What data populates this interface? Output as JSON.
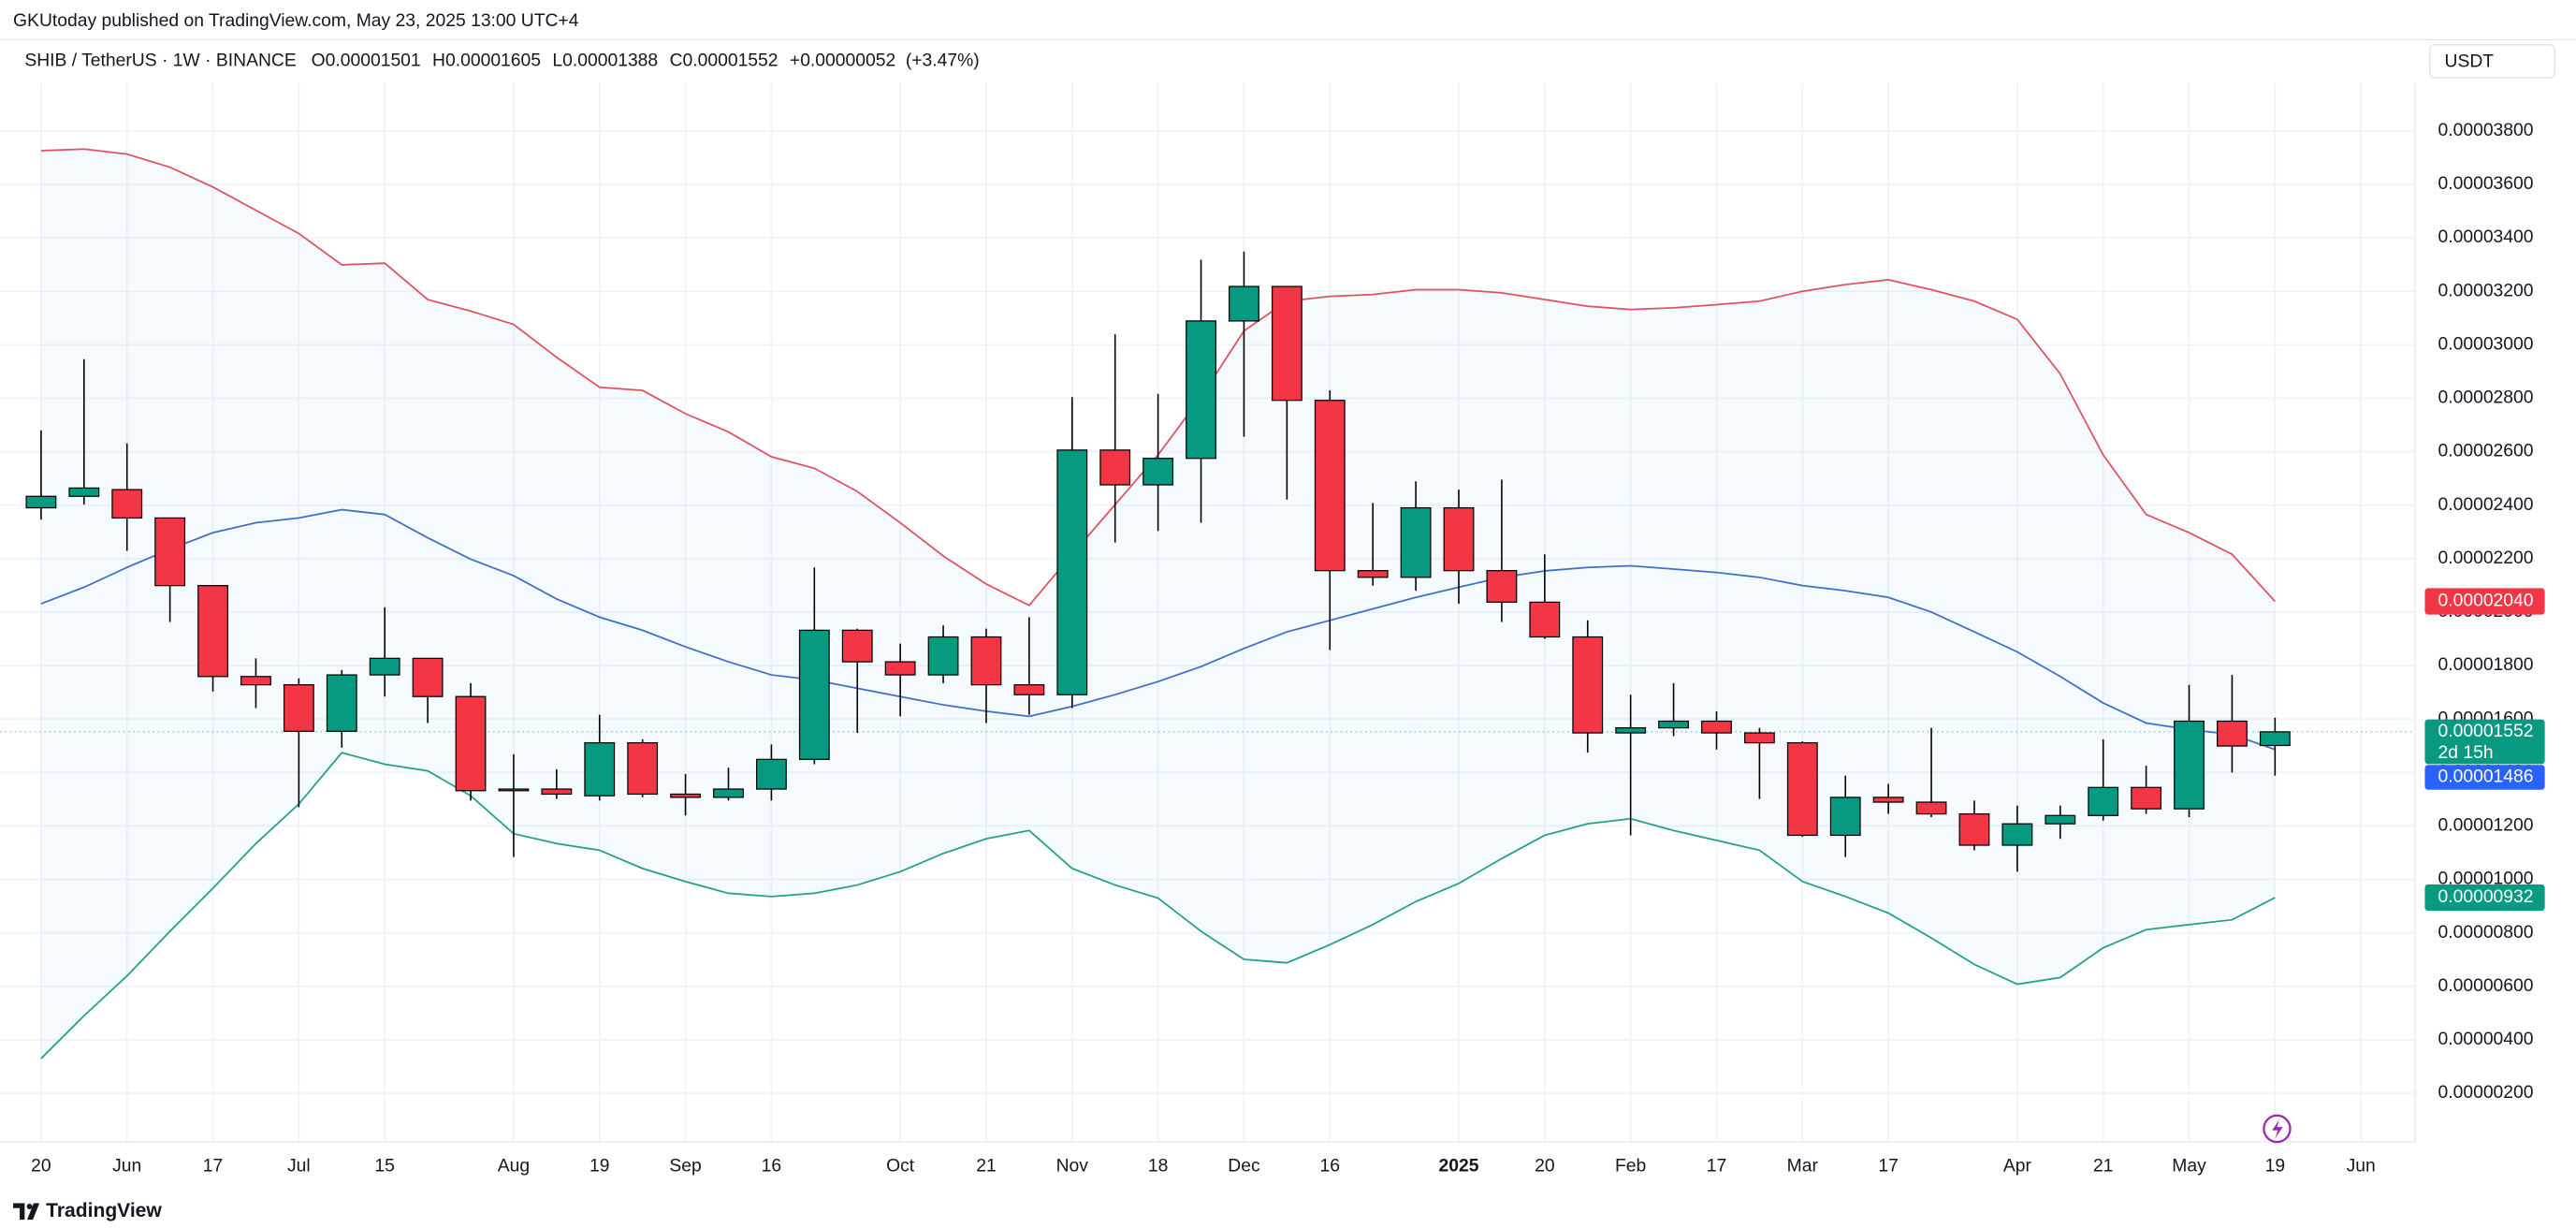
{
  "chart_data": {
    "type": "candlestick",
    "subtitle": "GKUtoday published on TradingView.com, May 23, 2025 13:00 UTC+4",
    "title": "SHIB / TetherUS · 1W · BINANCE",
    "ohlc_keys": [
      "O",
      "H",
      "L",
      "C"
    ],
    "change": "+0.00000052",
    "change_pct": "(+3.47%)",
    "currency": "USDT",
    "countdown": "2d 15h",
    "footer": "TradingView",
    "up_color": "#089981",
    "down_color": "#f23645",
    "grid": true,
    "categories": [
      "20",
      null,
      "Jun",
      null,
      "17",
      null,
      "Jul",
      null,
      "15",
      null,
      null,
      "Aug",
      null,
      "19",
      null,
      "Sep",
      null,
      "16",
      null,
      null,
      "Oct",
      null,
      "21",
      null,
      "Nov",
      null,
      "18",
      null,
      "Dec",
      null,
      "16",
      null,
      null,
      "2025",
      null,
      "20",
      null,
      "Feb",
      null,
      "17",
      null,
      "Mar",
      null,
      "17",
      null,
      null,
      "Apr",
      null,
      "21",
      null,
      "May",
      null,
      "19",
      null,
      "Jun"
    ],
    "open": [
      2.39e-05,
      2.433e-05,
      2.458e-05,
      2.352e-05,
      2.099e-05,
      1.759e-05,
      1.728e-05,
      1.554e-05,
      1.765e-05,
      1.827e-05,
      1.684e-05,
      1.338e-05,
      1.338e-05,
      1.313e-05,
      1.511e-05,
      1.319e-05,
      1.307e-05,
      1.338e-05,
      1.449e-05,
      1.932e-05,
      1.814e-05,
      1.765e-05,
      1.907e-05,
      1.728e-05,
      1.691e-05,
      2.606e-05,
      2.476e-05,
      2.575e-05,
      3.089e-05,
      3.218e-05,
      2.792e-05,
      2.155e-05,
      2.13e-05,
      2.39e-05,
      2.155e-05,
      2.037e-05,
      1.907e-05,
      1.548e-05,
      1.567e-05,
      1.592e-05,
      1.548e-05,
      1.511e-05,
      1.165e-05,
      1.307e-05,
      1.289e-05,
      1.245e-05,
      1.128e-05,
      1.208e-05,
      1.239e-05,
      1.344e-05,
      1.264e-05,
      1.592e-05,
      1.501e-05,
      null,
      null
    ],
    "high": [
      2.68e-05,
      2.946e-05,
      2.631e-05,
      2.352e-05,
      2.099e-05,
      1.827e-05,
      1.752e-05,
      1.783e-05,
      2.018e-05,
      1.827e-05,
      1.734e-05,
      1.468e-05,
      1.412e-05,
      1.616e-05,
      1.524e-05,
      1.394e-05,
      1.418e-05,
      1.505e-05,
      2.167e-05,
      1.938e-05,
      1.882e-05,
      1.95e-05,
      1.938e-05,
      1.981e-05,
      2.804e-05,
      3.039e-05,
      2.816e-05,
      3.318e-05,
      3.348e-05,
      3.218e-05,
      2.829e-05,
      2.408e-05,
      2.489e-05,
      2.458e-05,
      2.495e-05,
      2.216e-05,
      1.969e-05,
      1.691e-05,
      1.734e-05,
      1.629e-05,
      1.567e-05,
      1.517e-05,
      1.388e-05,
      1.357e-05,
      1.567e-05,
      1.295e-05,
      1.276e-05,
      1.276e-05,
      1.524e-05,
      1.425e-05,
      1.728e-05,
      1.765e-05,
      1.605e-05,
      null,
      null
    ],
    "low": [
      2.346e-05,
      2.402e-05,
      2.229e-05,
      1.963e-05,
      1.703e-05,
      1.641e-05,
      1.27e-05,
      1.493e-05,
      1.684e-05,
      1.585e-05,
      1.295e-05,
      1.084e-05,
      1.301e-05,
      1.295e-05,
      1.307e-05,
      1.239e-05,
      1.295e-05,
      1.295e-05,
      1.431e-05,
      1.548e-05,
      1.61e-05,
      1.734e-05,
      1.585e-05,
      1.616e-05,
      1.641e-05,
      2.26e-05,
      2.303e-05,
      2.334e-05,
      2.656e-05,
      2.421e-05,
      1.858e-05,
      2.099e-05,
      2.08e-05,
      2.031e-05,
      1.963e-05,
      1.9e-05,
      1.474e-05,
      1.165e-05,
      1.536e-05,
      1.486e-05,
      1.301e-05,
      1.159e-05,
      1.084e-05,
      1.245e-05,
      1.233e-05,
      1.109e-05,
      1.029e-05,
      1.152e-05,
      1.22e-05,
      1.245e-05,
      1.233e-05,
      1.4e-05,
      1.388e-05,
      null,
      null
    ],
    "close": [
      2.433e-05,
      2.464e-05,
      2.352e-05,
      2.099e-05,
      1.759e-05,
      1.728e-05,
      1.554e-05,
      1.765e-05,
      1.827e-05,
      1.684e-05,
      1.332e-05,
      1.332e-05,
      1.319e-05,
      1.511e-05,
      1.319e-05,
      1.307e-05,
      1.338e-05,
      1.449e-05,
      1.932e-05,
      1.814e-05,
      1.765e-05,
      1.907e-05,
      1.728e-05,
      1.691e-05,
      2.606e-05,
      2.476e-05,
      2.575e-05,
      3.089e-05,
      3.218e-05,
      2.792e-05,
      2.155e-05,
      2.13e-05,
      2.39e-05,
      2.155e-05,
      2.037e-05,
      1.907e-05,
      1.548e-05,
      1.567e-05,
      1.592e-05,
      1.548e-05,
      1.511e-05,
      1.165e-05,
      1.307e-05,
      1.289e-05,
      1.245e-05,
      1.128e-05,
      1.208e-05,
      1.239e-05,
      1.344e-05,
      1.264e-05,
      1.592e-05,
      1.499e-05,
      1.552e-05,
      null,
      null
    ],
    "overlays": [
      {
        "color": "#e0525f",
        "label_color": "#f23645",
        "last_label": "0.00002040",
        "values": [
          3.726e-05,
          3.732e-05,
          3.713e-05,
          3.664e-05,
          3.59e-05,
          3.503e-05,
          3.416e-05,
          3.299e-05,
          3.305e-05,
          3.169e-05,
          3.126e-05,
          3.076e-05,
          2.953e-05,
          2.841e-05,
          2.829e-05,
          2.742e-05,
          2.674e-05,
          2.581e-05,
          2.538e-05,
          2.451e-05,
          2.334e-05,
          2.21e-05,
          2.105e-05,
          2.025e-05,
          2.216e-05,
          2.402e-05,
          2.588e-05,
          2.804e-05,
          3.052e-05,
          3.163e-05,
          3.181e-05,
          3.188e-05,
          3.206e-05,
          3.206e-05,
          3.194e-05,
          3.169e-05,
          3.144e-05,
          3.132e-05,
          3.138e-05,
          3.15e-05,
          3.163e-05,
          3.2e-05,
          3.225e-05,
          3.243e-05,
          3.206e-05,
          3.163e-05,
          3.095e-05,
          2.891e-05,
          2.588e-05,
          2.365e-05,
          2.297e-05,
          2.216e-05,
          2.04e-05,
          null,
          null
        ]
      },
      {
        "color": "#3f6fc8",
        "label_color": "#2962ff",
        "last_label": "0.00001486",
        "values": [
          2.031e-05,
          2.093e-05,
          2.167e-05,
          2.235e-05,
          2.297e-05,
          2.334e-05,
          2.352e-05,
          2.383e-05,
          2.365e-05,
          2.278e-05,
          2.198e-05,
          2.136e-05,
          2.049e-05,
          1.981e-05,
          1.932e-05,
          1.87e-05,
          1.814e-05,
          1.765e-05,
          1.746e-05,
          1.715e-05,
          1.684e-05,
          1.653e-05,
          1.629e-05,
          1.61e-05,
          1.647e-05,
          1.691e-05,
          1.74e-05,
          1.796e-05,
          1.864e-05,
          1.926e-05,
          1.969e-05,
          2.012e-05,
          2.055e-05,
          2.093e-05,
          2.13e-05,
          2.154e-05,
          2.167e-05,
          2.173e-05,
          2.161e-05,
          2.148e-05,
          2.13e-05,
          2.099e-05,
          2.08e-05,
          2.055e-05,
          2e-05,
          1.926e-05,
          1.851e-05,
          1.759e-05,
          1.66e-05,
          1.585e-05,
          1.561e-05,
          1.542e-05,
          1.486e-05,
          null,
          null
        ]
      },
      {
        "color": "#22a08a",
        "label_color": "#089981",
        "last_label": "0.00000932",
        "values": [
          3.3e-06,
          4.9e-06,
          6.39e-06,
          8.06e-06,
          9.67e-06,
          1.134e-05,
          1.282e-05,
          1.474e-05,
          1.431e-05,
          1.406e-05,
          1.313e-05,
          1.171e-05,
          1.134e-05,
          1.109e-05,
          1.041e-05,
          9.92e-06,
          9.48e-06,
          9.36e-06,
          9.48e-06,
          9.79e-06,
          1.029e-05,
          1.097e-05,
          1.152e-05,
          1.183e-05,
          1.041e-05,
          9.79e-06,
          9.3e-06,
          8.06e-06,
          7.01e-06,
          6.88e-06,
          7.56e-06,
          8.31e-06,
          9.17e-06,
          9.85e-06,
          1.078e-05,
          1.165e-05,
          1.208e-05,
          1.227e-05,
          1.183e-05,
          1.146e-05,
          1.109e-05,
          9.92e-06,
          9.36e-06,
          8.74e-06,
          7.81e-06,
          6.82e-06,
          6.08e-06,
          6.33e-06,
          7.44e-06,
          8.12e-06,
          8.31e-06,
          8.49e-06,
          9.32e-06,
          null,
          null
        ]
      }
    ],
    "band_fill": "#2196f3",
    "ylim": [
      1.8e-07,
      3.98e-05
    ],
    "yticks": [
      {
        "value": 2e-06,
        "label": "0.00000200"
      },
      {
        "value": 4e-06,
        "label": "0.00000400"
      },
      {
        "value": 6e-06,
        "label": "0.00000600"
      },
      {
        "value": 8e-06,
        "label": "0.00000800"
      },
      {
        "value": 1e-05,
        "label": "0.00001000"
      },
      {
        "value": 1.2e-05,
        "label": "0.00001200"
      },
      {
        "value": 1.4e-05,
        "label": "0.00001400"
      },
      {
        "value": 1.6e-05,
        "label": "0.00001600"
      },
      {
        "value": 1.8e-05,
        "label": "0.00001800"
      },
      {
        "value": 2e-05,
        "label": "0.00002000"
      },
      {
        "value": 2.2e-05,
        "label": "0.00002200"
      },
      {
        "value": 2.4e-05,
        "label": "0.00002400"
      },
      {
        "value": 2.6e-05,
        "label": "0.00002600"
      },
      {
        "value": 2.8e-05,
        "label": "0.00002800"
      },
      {
        "value": 3e-05,
        "label": "0.00003000"
      },
      {
        "value": 3.2e-05,
        "label": "0.00003200"
      },
      {
        "value": 3.4e-05,
        "label": "0.00003400"
      },
      {
        "value": 3.6e-05,
        "label": "0.00003600"
      },
      {
        "value": 3.8e-05,
        "label": "0.00003800"
      }
    ]
  }
}
